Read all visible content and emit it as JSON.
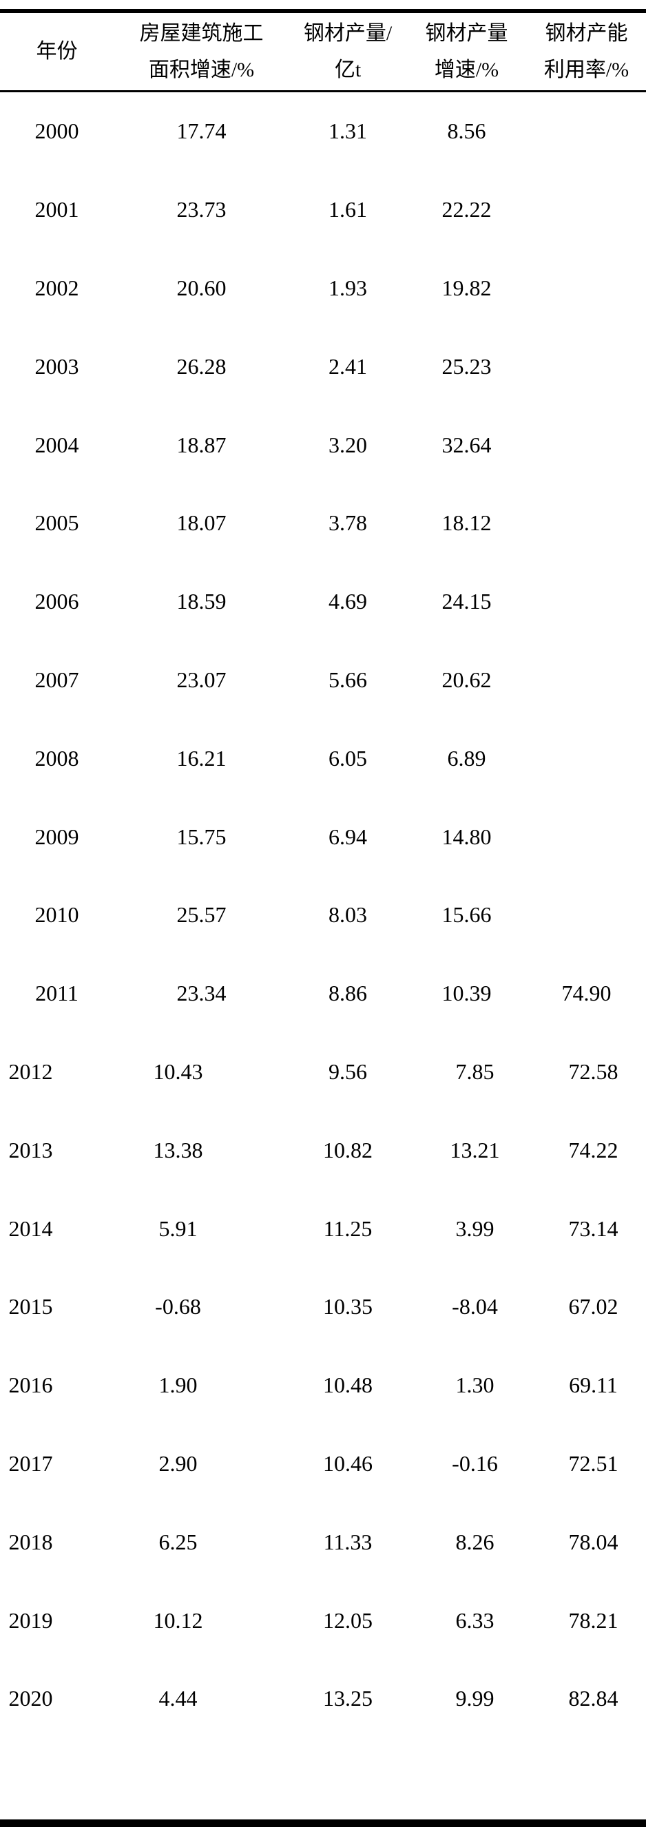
{
  "colors": {
    "text": "#000000",
    "background": "#ffffff",
    "rule": "#000000"
  },
  "table": {
    "header": [
      {
        "line1": "年份",
        "line2": ""
      },
      {
        "line1": "房屋建筑施工",
        "line2": "面积增速/%"
      },
      {
        "line1": "钢材产量/",
        "line2": "亿t"
      },
      {
        "line1": "钢材产量",
        "line2": "增速/%"
      },
      {
        "line1": "钢材产能",
        "line2": "利用率/%"
      }
    ],
    "rows": [
      [
        "2000",
        "17.74",
        "1.31",
        "8.56",
        ""
      ],
      [
        "2001",
        "23.73",
        "1.61",
        "22.22",
        ""
      ],
      [
        "2002",
        "20.60",
        "1.93",
        "19.82",
        ""
      ],
      [
        "2003",
        "26.28",
        "2.41",
        "25.23",
        ""
      ],
      [
        "2004",
        "18.87",
        "3.20",
        "32.64",
        ""
      ],
      [
        "2005",
        "18.07",
        "3.78",
        "18.12",
        ""
      ],
      [
        "2006",
        "18.59",
        "4.69",
        "24.15",
        ""
      ],
      [
        "2007",
        "23.07",
        "5.66",
        "20.62",
        ""
      ],
      [
        "2008",
        "16.21",
        "6.05",
        "6.89",
        ""
      ],
      [
        "2009",
        "15.75",
        "6.94",
        "14.80",
        ""
      ],
      [
        "2010",
        "25.57",
        "8.03",
        "15.66",
        ""
      ],
      [
        "2011",
        "23.34",
        "8.86",
        "10.39",
        "74.90"
      ],
      [
        "2012",
        "10.43",
        "9.56",
        "7.85",
        "72.58"
      ],
      [
        "2013",
        "13.38",
        "10.82",
        "13.21",
        "74.22"
      ],
      [
        "2014",
        "5.91",
        "11.25",
        "3.99",
        "73.14"
      ],
      [
        "2015",
        "-0.68",
        "10.35",
        "-8.04",
        "67.02"
      ],
      [
        "2016",
        "1.90",
        "10.48",
        "1.30",
        "69.11"
      ],
      [
        "2017",
        "2.90",
        "10.46",
        "-0.16",
        "72.51"
      ],
      [
        "2018",
        "6.25",
        "11.33",
        "8.26",
        "78.04"
      ],
      [
        "2019",
        "10.12",
        "12.05",
        "6.33",
        "78.21"
      ],
      [
        "2020",
        "4.44",
        "13.25",
        "9.99",
        "82.84"
      ]
    ]
  }
}
